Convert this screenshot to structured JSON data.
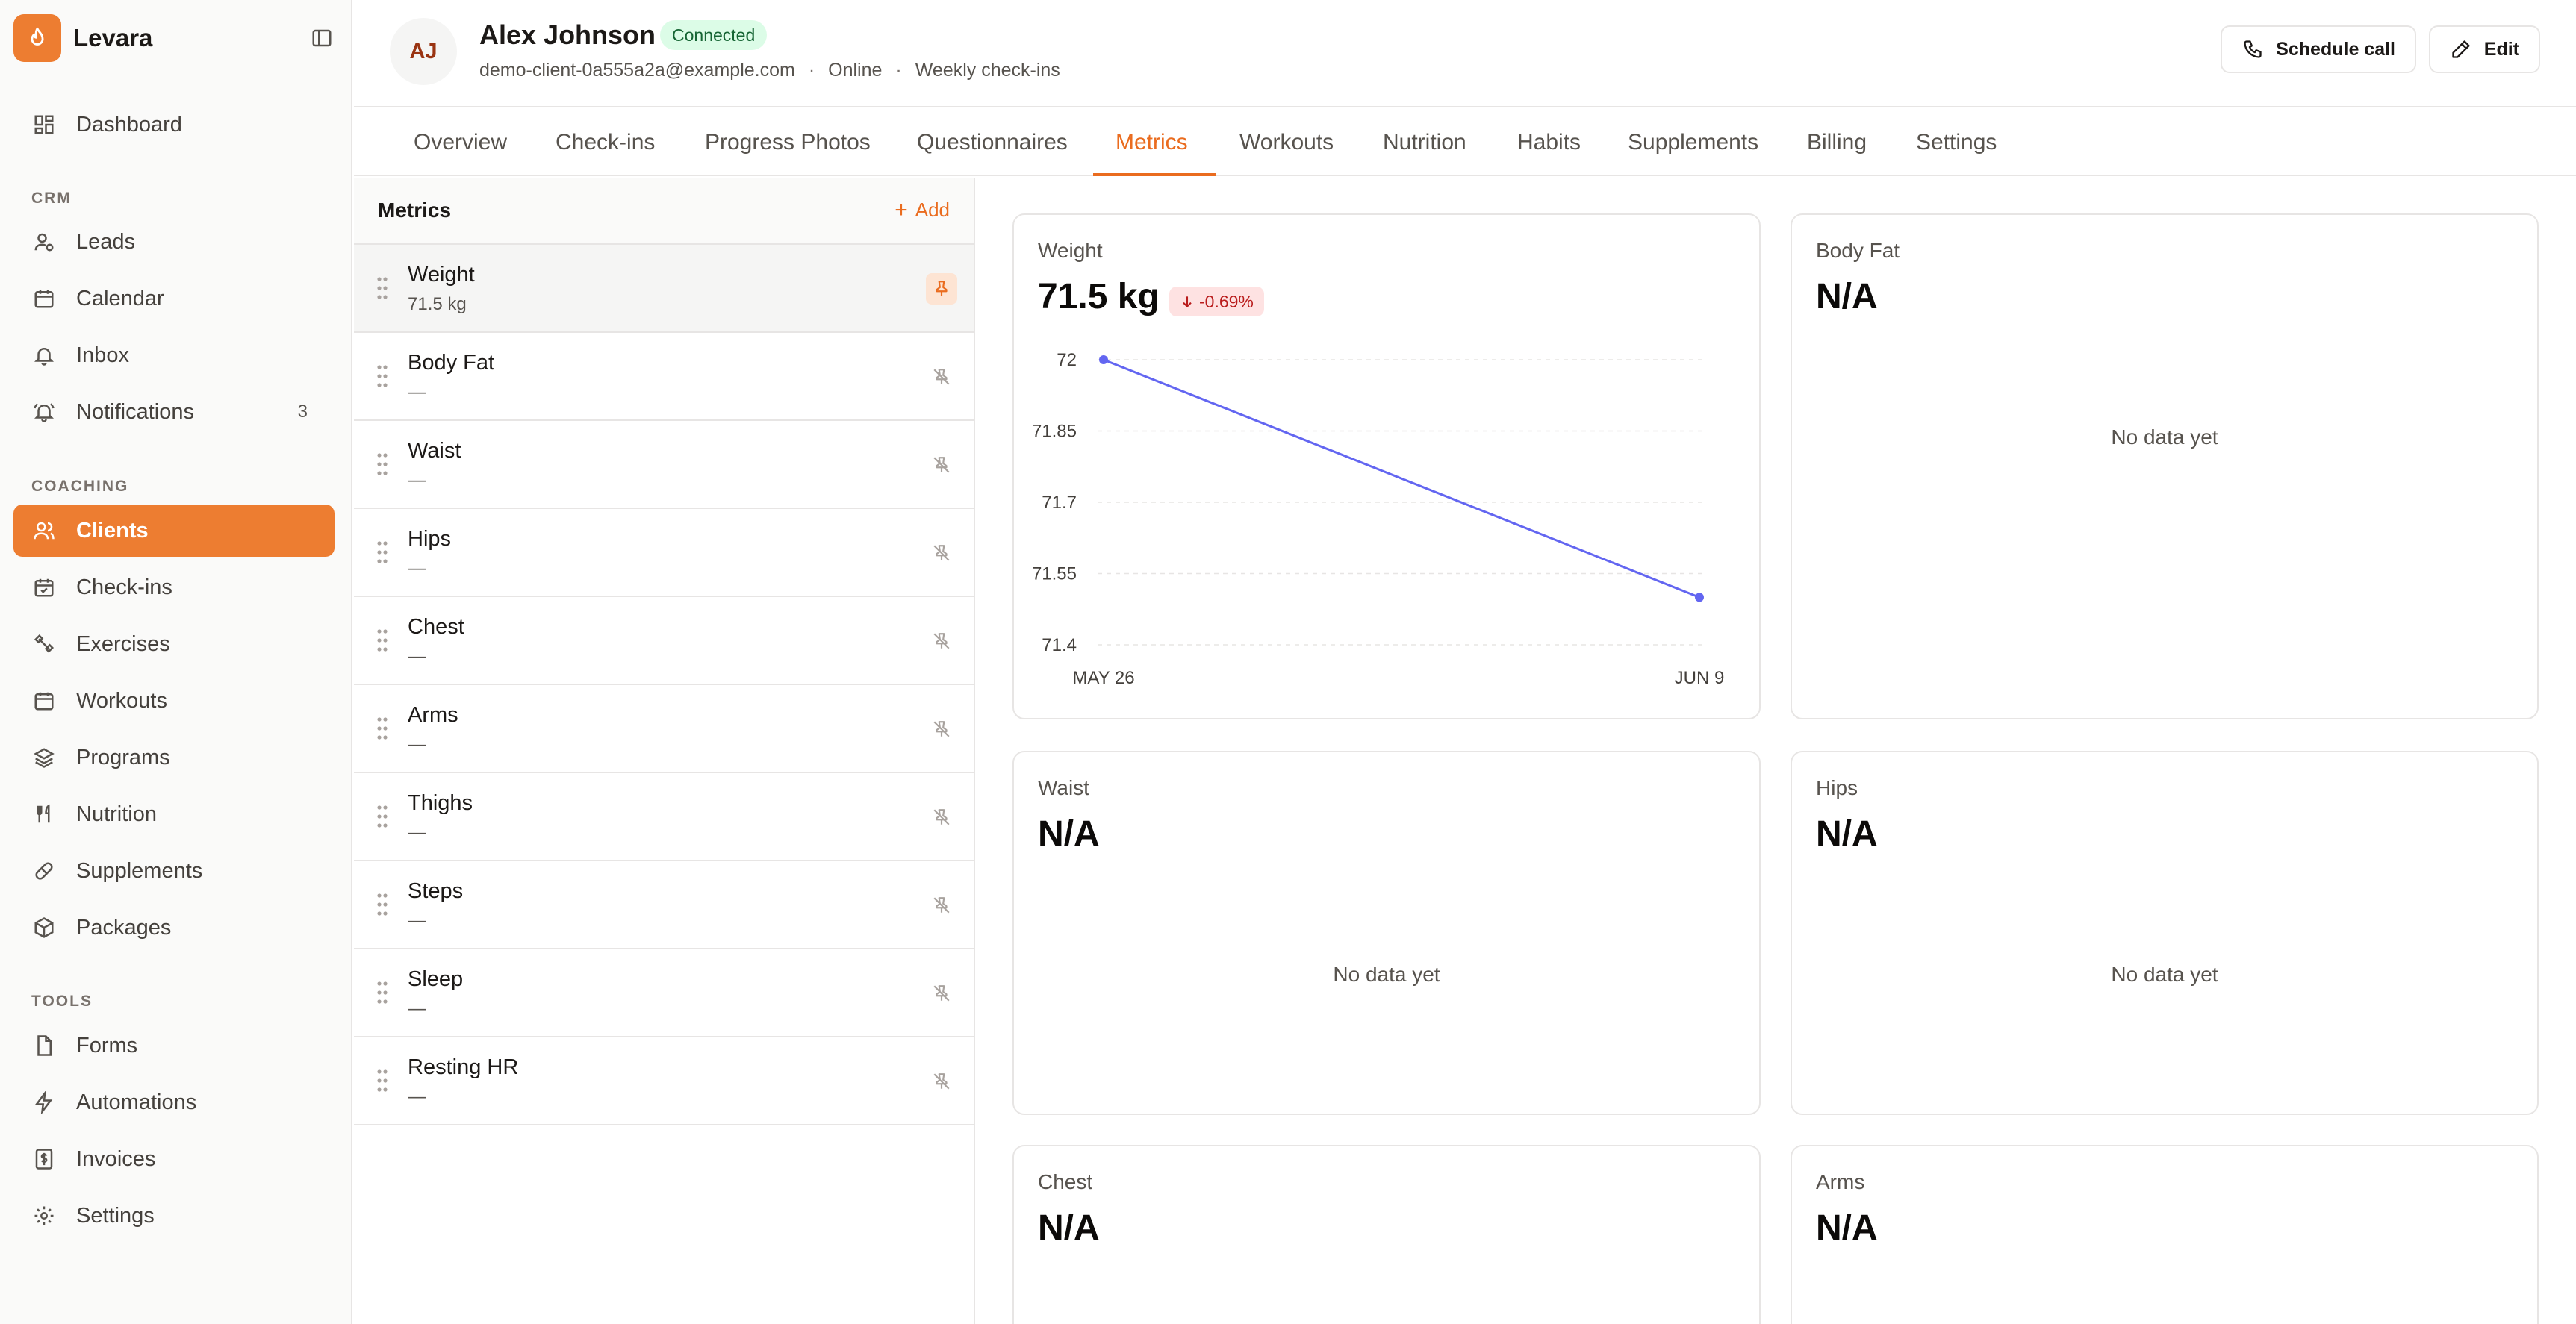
{
  "app": {
    "name": "Levara"
  },
  "sidebar": {
    "top": [
      {
        "label": "Dashboard",
        "icon": "dashboard-icon"
      }
    ],
    "sections": [
      {
        "title": "CRM",
        "items": [
          {
            "label": "Leads",
            "icon": "user-icon"
          },
          {
            "label": "Calendar",
            "icon": "calendar-icon"
          },
          {
            "label": "Inbox",
            "icon": "bell-icon"
          },
          {
            "label": "Notifications",
            "icon": "bell-ring-icon",
            "badge": "3"
          }
        ]
      },
      {
        "title": "COACHING",
        "items": [
          {
            "label": "Clients",
            "icon": "users-icon",
            "active": true
          },
          {
            "label": "Check-ins",
            "icon": "calendar-check-icon"
          },
          {
            "label": "Exercises",
            "icon": "dumbbell-icon"
          },
          {
            "label": "Workouts",
            "icon": "calendar-icon"
          },
          {
            "label": "Programs",
            "icon": "layers-icon"
          },
          {
            "label": "Nutrition",
            "icon": "utensils-icon"
          },
          {
            "label": "Supplements",
            "icon": "pill-icon"
          },
          {
            "label": "Packages",
            "icon": "package-icon"
          }
        ]
      },
      {
        "title": "TOOLS",
        "items": [
          {
            "label": "Forms",
            "icon": "file-icon"
          },
          {
            "label": "Automations",
            "icon": "zap-icon"
          },
          {
            "label": "Invoices",
            "icon": "receipt-icon"
          },
          {
            "label": "Settings",
            "icon": "gear-icon"
          }
        ]
      }
    ]
  },
  "client": {
    "initials": "AJ",
    "name": "Alex Johnson",
    "status": "Connected",
    "email": "demo-client-0a555a2a@example.com",
    "mode": "Online",
    "cadence": "Weekly check-ins",
    "meta_separator": "·"
  },
  "header_actions": {
    "schedule_call": "Schedule call",
    "edit": "Edit"
  },
  "tabs": [
    "Overview",
    "Check-ins",
    "Progress Photos",
    "Questionnaires",
    "Metrics",
    "Workouts",
    "Nutrition",
    "Habits",
    "Supplements",
    "Billing",
    "Settings"
  ],
  "active_tab": "Metrics",
  "metrics_panel": {
    "title": "Metrics",
    "add_label": "Add",
    "items": [
      {
        "name": "Weight",
        "value": "71.5 kg",
        "pinned": true
      },
      {
        "name": "Body Fat",
        "value": "—",
        "pinned": false
      },
      {
        "name": "Waist",
        "value": "—",
        "pinned": false
      },
      {
        "name": "Hips",
        "value": "—",
        "pinned": false
      },
      {
        "name": "Chest",
        "value": "—",
        "pinned": false
      },
      {
        "name": "Arms",
        "value": "—",
        "pinned": false
      },
      {
        "name": "Thighs",
        "value": "—",
        "pinned": false
      },
      {
        "name": "Steps",
        "value": "—",
        "pinned": false
      },
      {
        "name": "Sleep",
        "value": "—",
        "pinned": false
      },
      {
        "name": "Resting HR",
        "value": "—",
        "pinned": false
      }
    ]
  },
  "cards": {
    "empty_text": "No data yet",
    "weight": {
      "title": "Weight",
      "value": "71.5 kg",
      "change": "-0.69%"
    },
    "body_fat": {
      "title": "Body Fat",
      "value": "N/A"
    },
    "waist": {
      "title": "Waist",
      "value": "N/A"
    },
    "hips": {
      "title": "Hips",
      "value": "N/A"
    },
    "chest": {
      "title": "Chest",
      "value": "N/A"
    },
    "arms": {
      "title": "Arms",
      "value": "N/A"
    }
  },
  "colors": {
    "accent": "#ea6c1f",
    "line": "#6366f1",
    "danger": "#b91c1c"
  },
  "chart_data": {
    "type": "line",
    "x": [
      "MAY 26",
      "JUN 9"
    ],
    "series": [
      {
        "values": [
          72.0,
          71.5
        ]
      }
    ],
    "yticks": [
      72,
      71.85,
      71.7,
      71.55,
      71.4
    ],
    "ytick_labels": [
      "72",
      "71.85",
      "71.7",
      "71.55",
      "71.4"
    ],
    "ylim": [
      71.4,
      72.0
    ],
    "grid": true
  }
}
